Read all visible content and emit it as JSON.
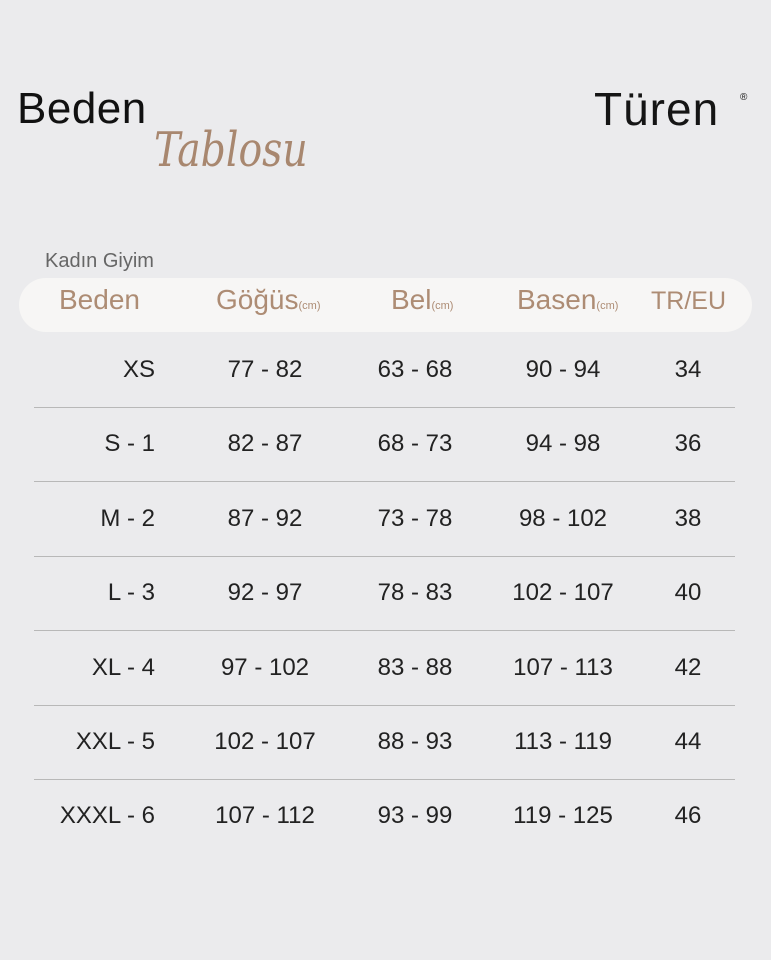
{
  "title": {
    "line1": "Beden",
    "line2": "Tablosu"
  },
  "brand": {
    "logo": "Türen",
    "registered": "®"
  },
  "section": "Kadın Giyim",
  "colors": {
    "accent": "#ad8c74",
    "background": "#ebebed"
  },
  "table": {
    "headers": [
      {
        "label": "Beden",
        "unit": ""
      },
      {
        "label": "Göğüs",
        "unit": "(cm)"
      },
      {
        "label": "Bel",
        "unit": "(cm)"
      },
      {
        "label": "Basen",
        "unit": "(cm)"
      },
      {
        "label": "TR/EU",
        "unit": ""
      }
    ],
    "rows": [
      [
        "XS",
        "77 - 82",
        "63 - 68",
        "90 - 94",
        "34"
      ],
      [
        "S - 1",
        "82 - 87",
        "68 - 73",
        "94 - 98",
        "36"
      ],
      [
        "M - 2",
        "87 - 92",
        "73 - 78",
        "98 - 102",
        "38"
      ],
      [
        "L - 3",
        "92 - 97",
        "78 - 83",
        "102 - 107",
        "40"
      ],
      [
        "XL - 4",
        "97 - 102",
        "83 - 88",
        "107 - 113",
        "42"
      ],
      [
        "XXL - 5",
        "102 - 107",
        "88 - 93",
        "113 - 119",
        "44"
      ],
      [
        "XXXL - 6",
        "107 - 112",
        "93 - 99",
        "119 - 125",
        "46"
      ]
    ]
  }
}
